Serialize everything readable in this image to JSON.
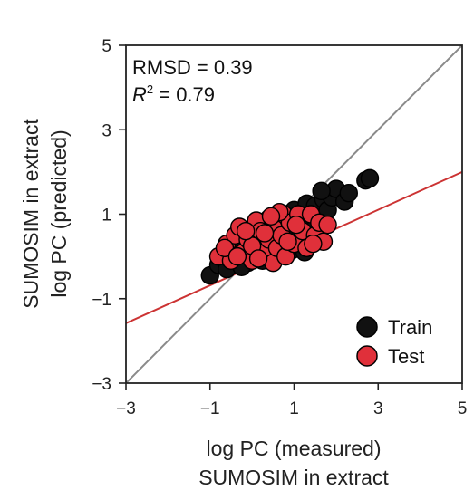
{
  "chart_data": {
    "type": "scatter",
    "title": "",
    "xlabel": [
      "log PC (measured)",
      "SUMOSIM in extract"
    ],
    "ylabel": [
      "SUMOSIM in extract",
      "log PC (predicted)"
    ],
    "xlim": [
      -3,
      5
    ],
    "ylim": [
      -3,
      5
    ],
    "xticks": [
      "−3",
      "−1",
      "1",
      "3",
      "5"
    ],
    "yticks": [
      "−3",
      "−1",
      "1",
      "3",
      "5"
    ],
    "grid": false,
    "legend_position": "bottom-right",
    "stats": {
      "rmsd_label": "RMSD = 0.39",
      "r2_symbol": "R",
      "r2_exponent": "2",
      "r2_value": " = 0.79"
    },
    "reference_lines": [
      {
        "name": "identity",
        "color": "#8a8a8a",
        "x": [
          -3,
          5
        ],
        "y": [
          -3,
          5
        ]
      },
      {
        "name": "fit",
        "color": "#cc3333",
        "x": [
          -3,
          5
        ],
        "y": [
          -1.58,
          2.0
        ]
      }
    ],
    "series": [
      {
        "name": "Train",
        "color": "#111111",
        "points": [
          [
            -1.0,
            -0.45
          ],
          [
            -0.8,
            -0.2
          ],
          [
            -0.6,
            -0.3
          ],
          [
            -0.7,
            0.05
          ],
          [
            -0.5,
            0.2
          ],
          [
            -0.4,
            -0.1
          ],
          [
            -0.3,
            0.1
          ],
          [
            -0.2,
            0.3
          ],
          [
            -0.1,
            -0.15
          ],
          [
            0.0,
            0.5
          ],
          [
            0.05,
            0.15
          ],
          [
            0.1,
            0.7
          ],
          [
            0.2,
            0.25
          ],
          [
            0.3,
            0.55
          ],
          [
            0.35,
            0.0
          ],
          [
            0.4,
            0.9
          ],
          [
            0.5,
            0.4
          ],
          [
            0.6,
            0.75
          ],
          [
            0.7,
            0.2
          ],
          [
            0.8,
            1.0
          ],
          [
            0.9,
            0.5
          ],
          [
            1.0,
            1.1
          ],
          [
            1.1,
            0.3
          ],
          [
            1.2,
            0.8
          ],
          [
            1.3,
            1.25
          ],
          [
            1.4,
            0.6
          ],
          [
            1.5,
            1.2
          ],
          [
            1.6,
            0.9
          ],
          [
            1.7,
            1.35
          ],
          [
            1.8,
            1.1
          ],
          [
            1.9,
            1.4
          ],
          [
            2.0,
            1.6
          ],
          [
            2.2,
            1.3
          ],
          [
            2.3,
            1.5
          ],
          [
            2.7,
            1.8
          ],
          [
            2.8,
            1.85
          ],
          [
            1.15,
            0.45
          ],
          [
            0.25,
            -0.1
          ],
          [
            -0.25,
            -0.25
          ],
          [
            0.55,
            0.05
          ],
          [
            -0.55,
            -0.05
          ],
          [
            1.65,
            1.55
          ],
          [
            0.95,
            0.15
          ],
          [
            1.25,
            0.1
          ]
        ]
      },
      {
        "name": "Test",
        "color": "#e0303a",
        "points": [
          [
            -0.8,
            0.0
          ],
          [
            -0.6,
            0.3
          ],
          [
            -0.5,
            -0.1
          ],
          [
            -0.4,
            0.5
          ],
          [
            -0.3,
            0.7
          ],
          [
            -0.2,
            0.1
          ],
          [
            -0.1,
            0.4
          ],
          [
            0.0,
            -0.1
          ],
          [
            0.1,
            0.3
          ],
          [
            0.1,
            0.85
          ],
          [
            0.2,
            0.6
          ],
          [
            0.3,
            0.1
          ],
          [
            0.4,
            0.4
          ],
          [
            0.5,
            0.7
          ],
          [
            0.5,
            -0.15
          ],
          [
            0.6,
            0.2
          ],
          [
            0.7,
            0.5
          ],
          [
            0.75,
            1.0
          ],
          [
            0.8,
            0.0
          ],
          [
            0.9,
            0.8
          ],
          [
            1.0,
            0.3
          ],
          [
            1.1,
            1.0
          ],
          [
            1.2,
            0.6
          ],
          [
            1.3,
            0.2
          ],
          [
            1.4,
            1.0
          ],
          [
            1.5,
            0.5
          ],
          [
            1.6,
            0.8
          ],
          [
            1.7,
            0.35
          ],
          [
            1.8,
            0.75
          ],
          [
            -0.65,
            0.2
          ],
          [
            0.3,
            0.55
          ],
          [
            0.0,
            0.25
          ],
          [
            -0.35,
            0.0
          ],
          [
            0.65,
            1.05
          ],
          [
            1.05,
            0.75
          ],
          [
            0.15,
            -0.05
          ],
          [
            0.85,
            0.35
          ],
          [
            1.45,
            0.3
          ],
          [
            0.45,
            0.95
          ],
          [
            -0.15,
            0.6
          ]
        ]
      }
    ]
  }
}
